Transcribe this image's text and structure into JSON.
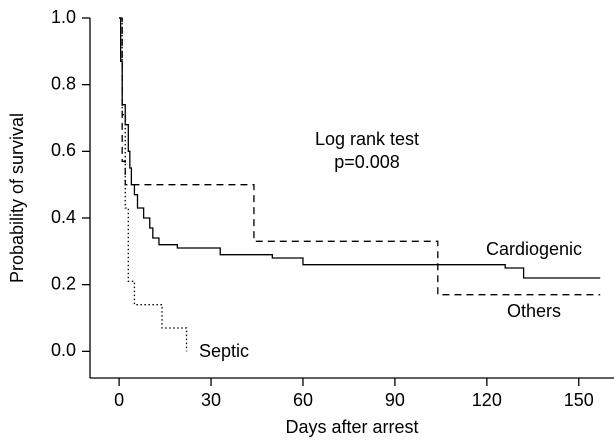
{
  "chart_data": {
    "type": "step",
    "x_label": "Days after arrest",
    "y_label": "Probability of survival",
    "annotations": [
      "Log rank test",
      "p=0.008"
    ],
    "xlim": [
      -9.5,
      161.5
    ],
    "xticks": [
      0,
      30,
      60,
      90,
      120,
      150
    ],
    "ylim": [
      -0.08,
      1.0
    ],
    "yticks": [
      {
        "value": 0,
        "label": "0.0"
      },
      0.2,
      0.4,
      0.6,
      0.8,
      {
        "value": 1,
        "label": "1.0"
      }
    ],
    "series": [
      {
        "name": "Cardiogenic",
        "color": "#000000",
        "line_style": "solid",
        "x": [
          0,
          0.5,
          1,
          2,
          3,
          3.5,
          4,
          5,
          6,
          8,
          10,
          11,
          13,
          19,
          33,
          50,
          60,
          126,
          132,
          157
        ],
        "values": [
          1.0,
          0.87,
          0.74,
          0.68,
          0.6,
          0.55,
          0.5,
          0.47,
          0.43,
          0.4,
          0.37,
          0.34,
          0.32,
          0.31,
          0.29,
          0.28,
          0.26,
          0.25,
          0.22,
          0.22
        ]
      },
      {
        "name": "Others",
        "color": "#000000",
        "line_style": "dashed",
        "x": [
          0,
          1,
          2,
          44,
          104,
          157
        ],
        "values": [
          1.0,
          0.57,
          0.5,
          0.33,
          0.17,
          0.17
        ]
      },
      {
        "name": "Septic",
        "color": "#000000",
        "line_style": "dotted",
        "x": [
          0,
          1,
          2,
          3,
          5,
          14,
          22
        ],
        "values": [
          1.0,
          0.71,
          0.43,
          0.21,
          0.14,
          0.07,
          0.0
        ]
      }
    ]
  }
}
